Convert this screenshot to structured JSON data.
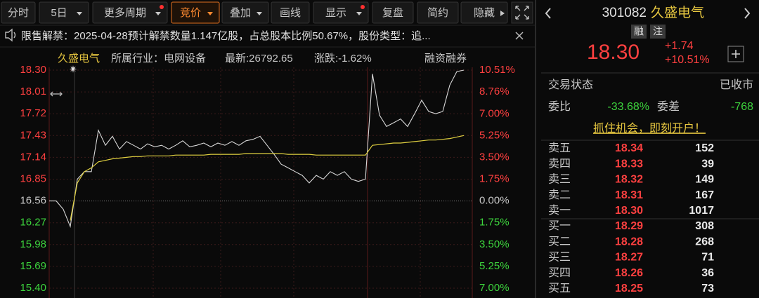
{
  "toolbar": {
    "buttons": [
      "分时",
      "5日",
      "更多周期",
      "竞价",
      "叠加",
      "画线",
      "显示",
      "复盘",
      "简约",
      "隐藏"
    ]
  },
  "notice": "限售解禁：2025-04-28预计解禁数量1.147亿股，占总股本比例50.67%，股份类型：追...",
  "chart_header": {
    "name": "久盛电气",
    "industry": "所属行业：电网设备",
    "latest": "最新:26792.65",
    "change": "涨跌:-1.62%",
    "margin": "融资融券"
  },
  "chart_data": {
    "type": "line",
    "series": [
      {
        "color": "#d8d8d8",
        "values": [
          16.56,
          16.56,
          16.45,
          16.22,
          16.85,
          16.95,
          16.95,
          17.5,
          17.3,
          17.42,
          17.25,
          17.35,
          17.3,
          17.25,
          17.32,
          17.28,
          17.3,
          17.25,
          17.3,
          17.36,
          17.28,
          17.3,
          17.33,
          17.28,
          17.33,
          17.3,
          17.35,
          17.3,
          17.36,
          17.38,
          17.42,
          17.3,
          17.18,
          17.05,
          17.0,
          16.95,
          16.9,
          16.8,
          16.9,
          16.85,
          16.95,
          16.9,
          16.95,
          16.85,
          16.82,
          16.85,
          18.25,
          17.7,
          17.55,
          17.6,
          17.65,
          17.55,
          17.72,
          17.9,
          17.75,
          17.72,
          17.75,
          18.1,
          18.28,
          18.3
        ]
      },
      {
        "color": "#e0d040",
        "values": [
          null,
          null,
          null,
          16.3,
          16.8,
          16.95,
          17.0,
          17.08,
          17.1,
          17.12,
          17.13,
          17.14,
          17.15,
          17.15,
          17.16,
          17.16,
          17.16,
          17.16,
          17.17,
          17.17,
          17.17,
          17.17,
          17.17,
          17.18,
          17.18,
          17.18,
          17.18,
          17.18,
          17.19,
          17.19,
          17.19,
          17.19,
          17.19,
          17.19,
          17.18,
          17.18,
          17.18,
          17.18,
          17.17,
          17.17,
          17.17,
          17.17,
          17.17,
          17.17,
          17.17,
          17.17,
          17.3,
          17.31,
          17.32,
          17.33,
          17.33,
          17.34,
          17.35,
          17.36,
          17.37,
          17.37,
          17.38,
          17.39,
          17.41,
          17.43
        ]
      }
    ],
    "ylim": [
      15.4,
      18.3
    ],
    "yticks": [
      {
        "value": 18.3,
        "label": "18.30"
      },
      18.01,
      17.72,
      17.43,
      17.14,
      16.85,
      16.56,
      16.27,
      15.98,
      15.69,
      {
        "value": 15.4,
        "label": "15.40"
      }
    ],
    "y2lim": [
      -7,
      10.51
    ],
    "y2ticks": [
      {
        "value": 10.51,
        "label": "10.51%"
      },
      {
        "value": 8.76,
        "label": "8.76%"
      },
      {
        "value": 7,
        "label": "7.00%"
      },
      {
        "value": 5.25,
        "label": "5.25%"
      },
      {
        "value": 3.5,
        "label": "3.50%"
      },
      {
        "value": 1.75,
        "label": "1.75%"
      },
      {
        "value": 0,
        "label": "0.00%"
      },
      {
        "value": -1.75,
        "label": "1.75%"
      },
      {
        "value": -3.5,
        "label": "3.50%"
      },
      {
        "value": -5.25,
        "label": "5.25%"
      },
      {
        "value": -7,
        "label": "7.00%"
      }
    ],
    "grid": true
  },
  "quote": {
    "code": "301082",
    "name": "久盛电气",
    "badges": [
      "融",
      "注"
    ],
    "price": "18.30",
    "change": "+1.74",
    "pct": "+10.51%"
  },
  "status": {
    "label": "交易状态",
    "value": "已收市"
  },
  "ratio": {
    "label": "委比",
    "value": "-33.68%",
    "diff_label": "委差",
    "diff": "-768"
  },
  "promo": "抓住机会，即刻开户！",
  "order_book": [
    [
      "卖五",
      "18.34",
      "152"
    ],
    [
      "卖四",
      "18.33",
      "39"
    ],
    [
      "卖三",
      "18.32",
      "149"
    ],
    [
      "卖二",
      "18.31",
      "167"
    ],
    [
      "卖一",
      "18.30",
      "1017"
    ],
    [
      "买一",
      "18.29",
      "308"
    ],
    [
      "买二",
      "18.28",
      "268"
    ],
    [
      "买三",
      "18.27",
      "71"
    ],
    [
      "买四",
      "18.26",
      "36"
    ],
    [
      "买五",
      "18.25",
      "73"
    ]
  ]
}
